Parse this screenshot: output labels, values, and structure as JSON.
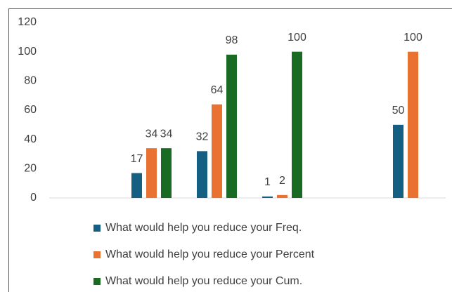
{
  "chart_data": {
    "type": "bar",
    "categories": [
      null,
      null,
      null,
      null,
      null,
      null
    ],
    "series": [
      {
        "name": "What would help you reduce your  Freq.",
        "color": "#156082",
        "values": [
          null,
          17,
          32,
          1,
          null,
          50
        ]
      },
      {
        "name": "What would help you reduce your  Percent",
        "color": "#e97132",
        "values": [
          null,
          34,
          64,
          2,
          null,
          100
        ]
      },
      {
        "name": "What would help you reduce your  Cum.",
        "color": "#196b24",
        "values": [
          null,
          34,
          98,
          100,
          null,
          null
        ]
      }
    ],
    "ylim": [
      0,
      120
    ],
    "yticks": [
      0,
      20,
      40,
      60,
      80,
      100,
      120
    ],
    "grid": false,
    "legend": "bottom"
  }
}
